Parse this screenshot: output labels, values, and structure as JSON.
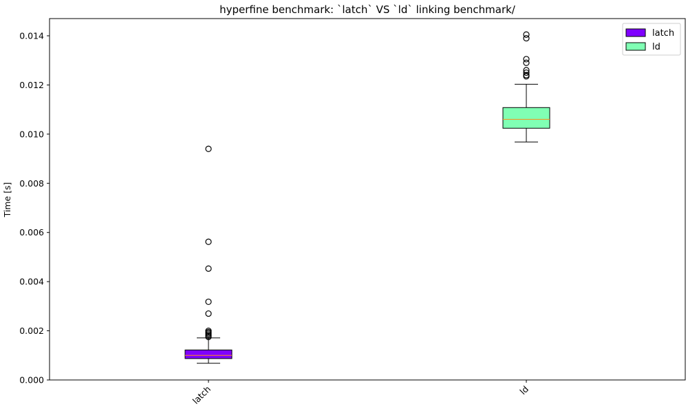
{
  "chart_data": {
    "type": "box",
    "title": "hyperfine benchmark: `latch` VS `ld` linking benchmark/",
    "xlabel": "",
    "ylabel": "Time [s]",
    "ylim": [
      0,
      0.0147
    ],
    "yticks": [
      0.0,
      0.002,
      0.004,
      0.006,
      0.008,
      0.01,
      0.012,
      0.014
    ],
    "ytick_labels": [
      "0.000",
      "0.002",
      "0.004",
      "0.006",
      "0.008",
      "0.010",
      "0.012",
      "0.014"
    ],
    "categories": [
      "latch",
      "ld"
    ],
    "legend_placement": "top-right",
    "grid": false,
    "series": [
      {
        "name": "latch",
        "color": "#7f00ff",
        "whisker_low": 0.00068,
        "q1": 0.00087,
        "median": 0.001,
        "q3": 0.00122,
        "whisker_high": 0.00171,
        "outliers": [
          0.00175,
          0.0018,
          0.00185,
          0.0019,
          0.00195,
          0.002,
          0.0027,
          0.00318,
          0.00453,
          0.00562,
          0.0094
        ]
      },
      {
        "name": "ld",
        "color": "#80ffb4",
        "whisker_low": 0.00968,
        "q1": 0.01024,
        "median": 0.0106,
        "q3": 0.01108,
        "whisker_high": 0.01203,
        "outliers": [
          0.01235,
          0.0124,
          0.0125,
          0.0126,
          0.0129,
          0.01305,
          0.0139,
          0.01405
        ]
      }
    ]
  },
  "colors": {
    "median": "#ff8c1a",
    "axis": "#000000"
  }
}
